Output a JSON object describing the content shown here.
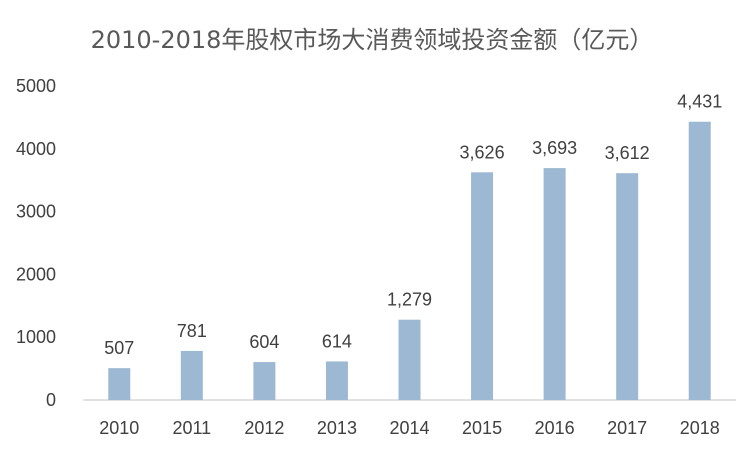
{
  "chart_data": {
    "type": "bar",
    "title": "2010-2018年股权市场大消费领域投资金额（亿元）",
    "xlabel": "",
    "ylabel": "",
    "categories": [
      "2010",
      "2011",
      "2012",
      "2013",
      "2014",
      "2015",
      "2016",
      "2017",
      "2018"
    ],
    "values": [
      507,
      781,
      604,
      614,
      1279,
      3626,
      3693,
      3612,
      4431
    ],
    "data_labels": [
      "507",
      "781",
      "604",
      "614",
      "1,279",
      "3,626",
      "3,693",
      "3,612",
      "4,431"
    ],
    "ylim": [
      0,
      5000
    ],
    "yticks": [
      0,
      1000,
      2000,
      3000,
      4000,
      5000
    ],
    "ytick_labels": [
      "0",
      "1000",
      "2000",
      "3000",
      "4000",
      "5000"
    ],
    "grid": false,
    "legend": "none",
    "colors": {
      "bar": "#9db8d3",
      "axis": "#d9d9d9",
      "text": "#404040",
      "title": "#595959"
    }
  }
}
